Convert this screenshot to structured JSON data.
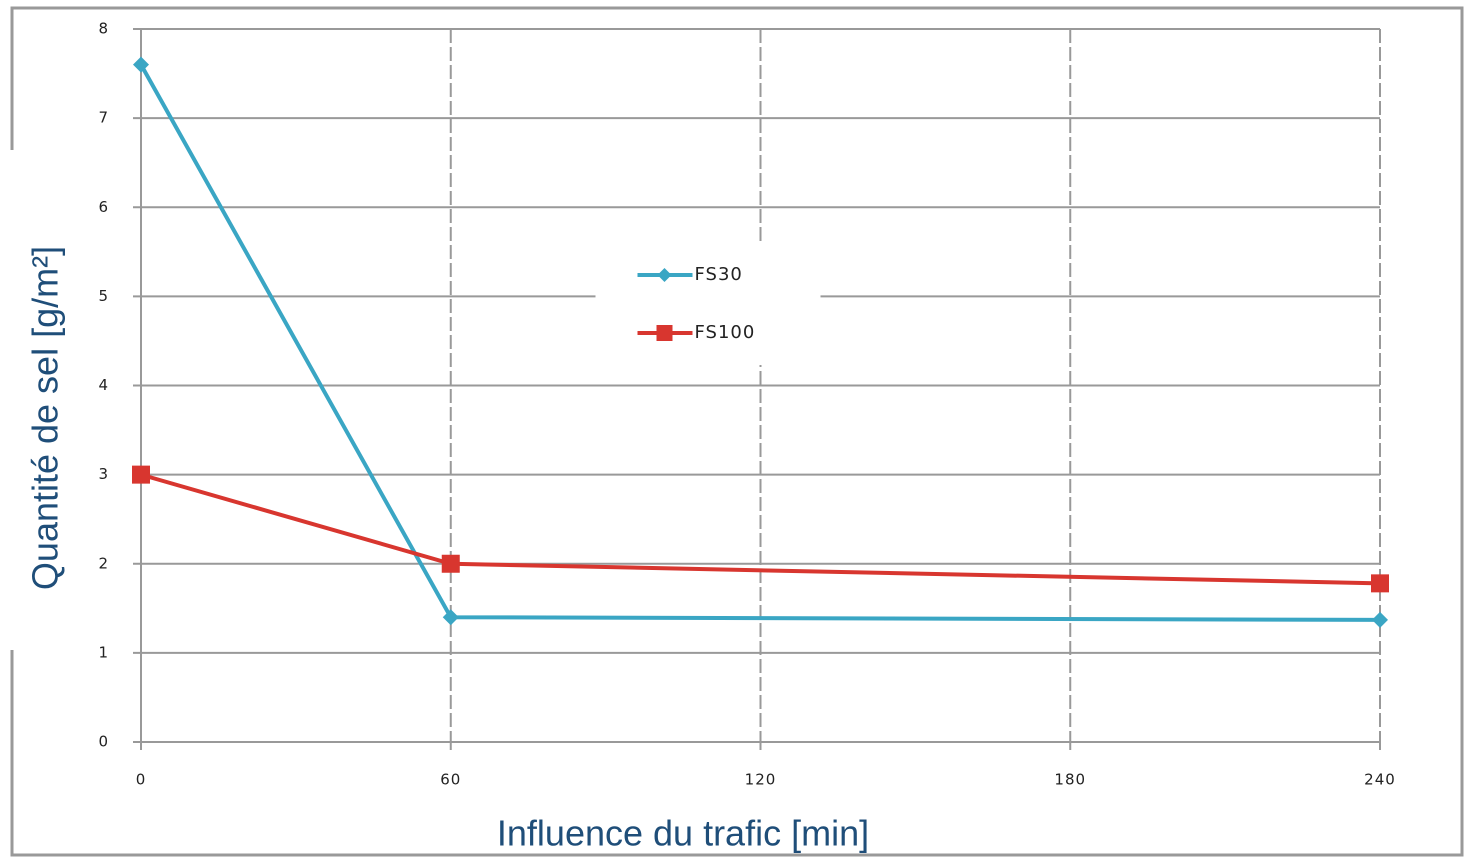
{
  "chart_data": {
    "type": "line",
    "xlabel": "Influence du trafic [min]",
    "ylabel": "Quantité de sel [g/m²]",
    "x": [
      0,
      60,
      240
    ],
    "series": [
      {
        "name": "FS30",
        "color": "#3aa6c4",
        "marker": "diamond",
        "values": [
          7.6,
          1.4,
          1.37
        ]
      },
      {
        "name": "FS100",
        "color": "#d8362f",
        "marker": "square",
        "values": [
          3.0,
          2.0,
          1.78
        ]
      }
    ],
    "xlim": [
      0,
      240
    ],
    "xticks": [
      0,
      60,
      120,
      180,
      240
    ],
    "ylim": [
      0,
      8
    ],
    "yticks": [
      0,
      1,
      2,
      3,
      4,
      5,
      6,
      7,
      8
    ],
    "grid": true,
    "legend": "center"
  }
}
